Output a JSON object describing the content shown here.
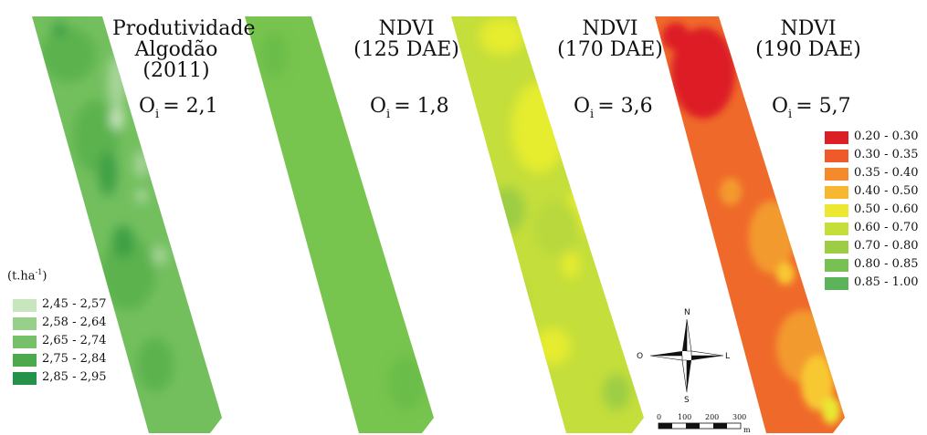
{
  "panels": [
    {
      "id": "yield",
      "title_lines": [
        "Produtividade",
        "Algodão",
        "(2011)"
      ],
      "oi_label": "O",
      "oi_sub": "i",
      "oi_value": "= 2,1",
      "base_color": "#73bf5e",
      "zone_colors": [
        "#5cb24d",
        "#3c9f44",
        "#a9d69b",
        "#cfe8c4"
      ]
    },
    {
      "id": "ndvi125",
      "title_lines": [
        "NDVI",
        "(125 DAE)"
      ],
      "oi_label": "O",
      "oi_sub": "i",
      "oi_value": "= 1,8",
      "base_color": "#77c44e",
      "zone_colors": [
        "#6bbd4a"
      ]
    },
    {
      "id": "ndvi170",
      "title_lines": [
        "NDVI",
        "(170 DAE)"
      ],
      "oi_label": "O",
      "oi_sub": "i",
      "oi_value": "= 3,6",
      "base_color": "#c4de3b",
      "zone_colors": [
        "#e6ec2f",
        "#9ccd45",
        "#b8d83e"
      ]
    },
    {
      "id": "ndvi190",
      "title_lines": [
        "NDVI",
        "(190 DAE)"
      ],
      "oi_label": "O",
      "oi_sub": "i",
      "oi_value": "= 5,7",
      "base_color": "#ef6a2a",
      "zone_colors": [
        "#dd1f26",
        "#f39a2e",
        "#f8c833",
        "#e9e731"
      ]
    }
  ],
  "yield_legend": {
    "unit_main": "(t.ha",
    "unit_sup": "-1",
    "unit_close": ")",
    "items": [
      {
        "label": "2,45 - 2,57",
        "color": "#c8e6be"
      },
      {
        "label": "2,58 - 2,64",
        "color": "#96d08a"
      },
      {
        "label": "2,65 - 2,74",
        "color": "#76c06a"
      },
      {
        "label": "2,75 - 2,84",
        "color": "#4daa4c"
      },
      {
        "label": "2,85 - 2,95",
        "color": "#25924a"
      }
    ]
  },
  "ndvi_legend": {
    "items": [
      {
        "label": "0.20 - 0.30",
        "color": "#dc1f26"
      },
      {
        "label": "0.30 - 0.35",
        "color": "#ee5a2a"
      },
      {
        "label": "0.35 - 0.40",
        "color": "#f48a2c"
      },
      {
        "label": "0.40 - 0.50",
        "color": "#f8b731"
      },
      {
        "label": "0.50 - 0.60",
        "color": "#ece731"
      },
      {
        "label": "0.60 - 0.70",
        "color": "#c6de3a"
      },
      {
        "label": "0.70 - 0.80",
        "color": "#9ccd45"
      },
      {
        "label": "0.80 - 0.85",
        "color": "#79c052"
      },
      {
        "label": "0.85 - 1.00",
        "color": "#5cb35a"
      }
    ]
  },
  "compass": {
    "north": "N",
    "south": "S",
    "west": "O",
    "east": "L"
  },
  "scale_bar": {
    "ticks": [
      "0",
      "100",
      "200",
      "300"
    ],
    "unit": "m"
  }
}
